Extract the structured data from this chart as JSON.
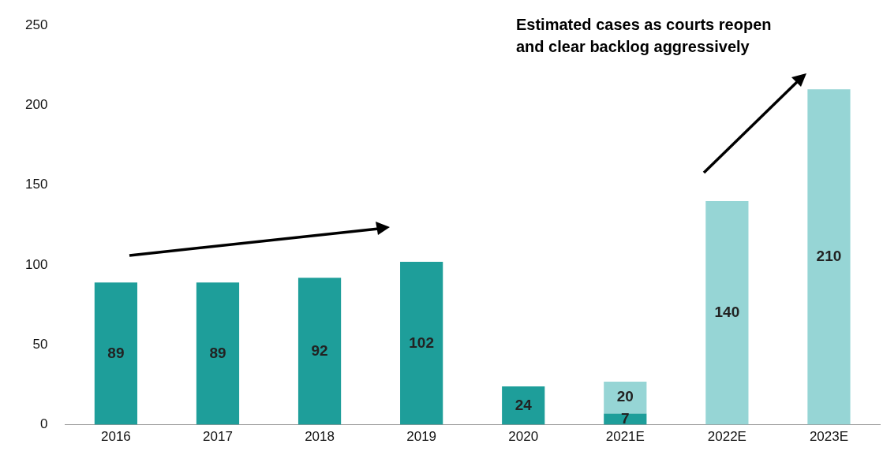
{
  "chart_data": {
    "type": "bar",
    "stacked": true,
    "categories": [
      "2016",
      "2017",
      "2018",
      "2019",
      "2020",
      "2021E",
      "2022E",
      "2023E"
    ],
    "series": [
      {
        "color": "#1e9e9a",
        "values": [
          89,
          89,
          92,
          102,
          24,
          7,
          null,
          null
        ]
      },
      {
        "color": "#96d5d5",
        "values": [
          null,
          null,
          null,
          null,
          null,
          20,
          140,
          210
        ]
      }
    ],
    "ylim": [
      0,
      250
    ],
    "yticks": [
      0,
      50,
      100,
      150,
      200,
      250
    ],
    "grid": false,
    "legend": false,
    "data_labels": true,
    "annotations": [
      "Estimated cases as courts reopen\nand clear backlog aggressively"
    ]
  }
}
